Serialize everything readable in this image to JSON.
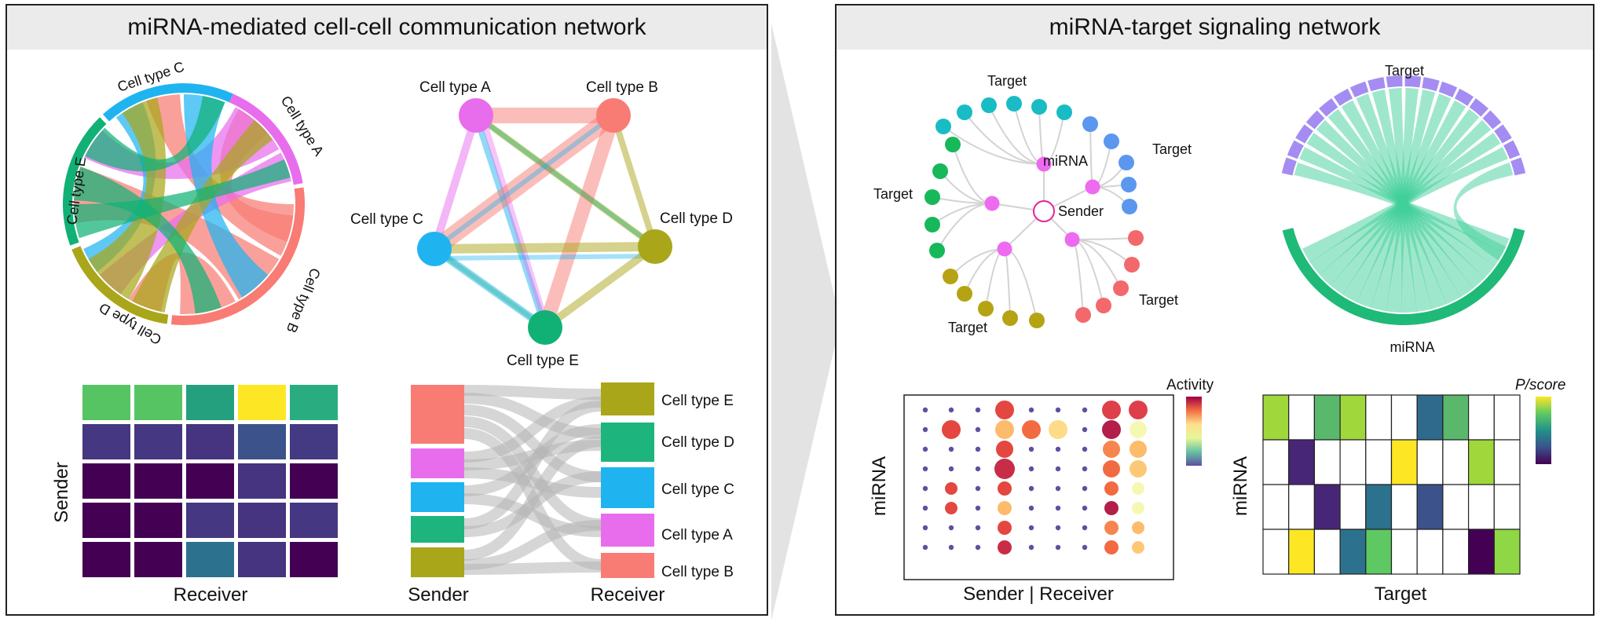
{
  "left_panel": {
    "title": "miRNA-mediated cell-cell communication network",
    "chord": {
      "labels": [
        "Cell type A",
        "Cell type B",
        "Cell type C",
        "Cell type D",
        "Cell type E"
      ]
    },
    "network": {
      "labels": [
        "Cell type A",
        "Cell type B",
        "Cell type C",
        "Cell type D",
        "Cell type E"
      ]
    },
    "heatmap": {
      "ylabel": "Sender",
      "xlabel": "Receiver"
    },
    "sankey": {
      "left_label": "Sender",
      "right_label": "Receiver",
      "right_nodes": [
        "Cell type E",
        "Cell type D",
        "Cell type C",
        "Cell type A",
        "Cell type B"
      ]
    }
  },
  "right_panel": {
    "title": "miRNA-target signaling network",
    "tree": {
      "target_label": "Target",
      "mirna_label": "miRNA",
      "sender_label": "Sender"
    },
    "chord": {
      "top_label": "Target",
      "bottom_label": "miRNA"
    },
    "dotplot": {
      "ylabel": "miRNA",
      "xlabel": "Sender | Receiver",
      "legend_title": "Activity"
    },
    "grid": {
      "ylabel": "miRNA",
      "xlabel": "Target",
      "legend_title": "P/score"
    }
  },
  "colors": {
    "cell_a": "#e86ded",
    "cell_b": "#f87c74",
    "cell_c": "#1fb4f0",
    "cell_d": "#a9a61a",
    "cell_e": "#11b176",
    "viridis_dark": "#440154",
    "viridis_yellow": "#f8e621",
    "mirna_node": "#ee6af0",
    "target_purple": "#a58cf2",
    "target_green": "#1fba78"
  }
}
